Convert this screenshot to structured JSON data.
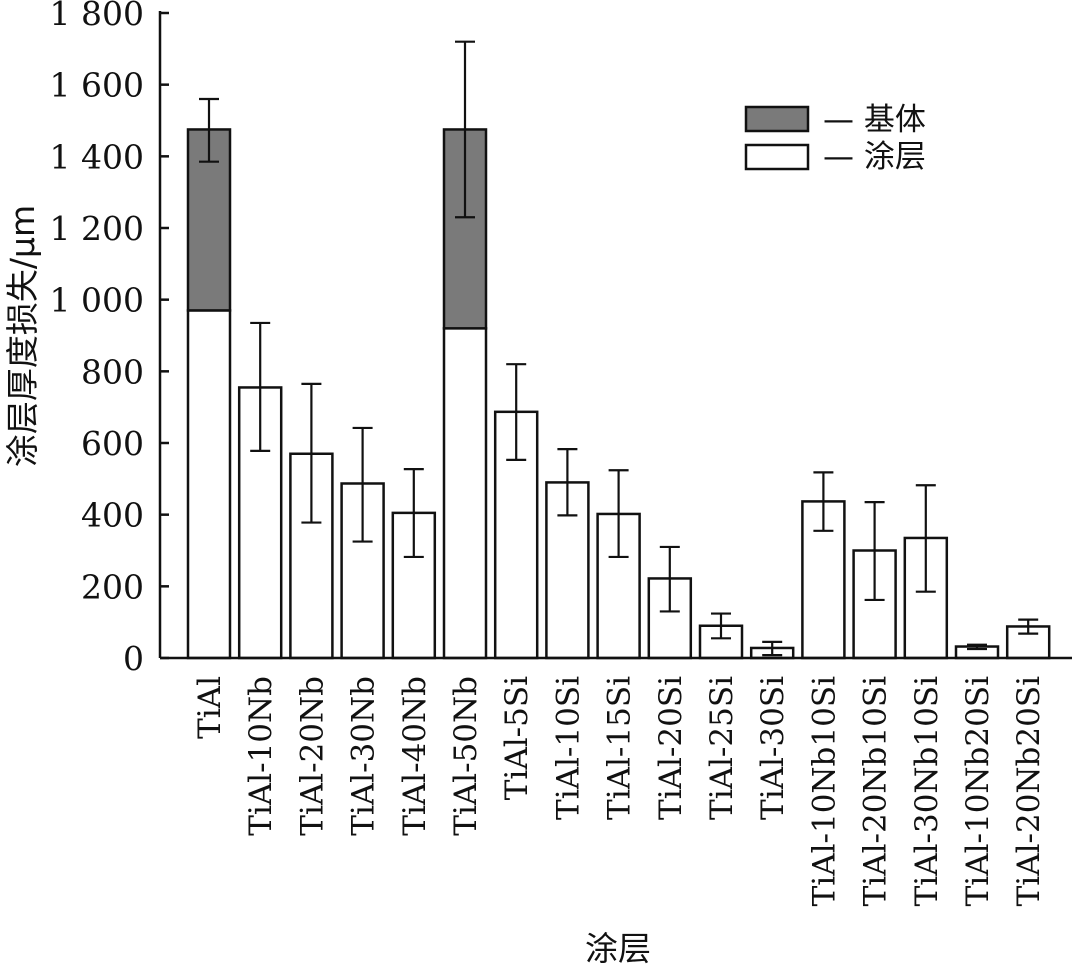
{
  "chart_data": {
    "type": "bar",
    "stacked": true,
    "xlabel": "涂层",
    "ylabel": "涂层厚度损失/μm",
    "ylim": [
      0,
      1800
    ],
    "yticks": [
      0,
      200,
      400,
      600,
      800,
      1000,
      1200,
      1400,
      1600,
      1800
    ],
    "ytick_labels": [
      "0",
      "200",
      "400",
      "600",
      "800",
      "1 000",
      "1 200",
      "1 400",
      "1 600",
      "1 800"
    ],
    "grid": false,
    "legend_position": "top-right",
    "categories": [
      "TiAl",
      "TiAl-10Nb",
      "TiAl-20Nb",
      "TiAl-30Nb",
      "TiAl-40Nb",
      "TiAl-50Nb",
      "TiAl-5Si",
      "TiAl-10Si",
      "TiAl-15Si",
      "TiAl-20Si",
      "TiAl-25Si",
      "TiAl-30Si",
      "TiAl-10Nb10Si",
      "TiAl-20Nb10Si",
      "TiAl-30Nb10Si",
      "TiAl-10Nb20Si",
      "TiAl-20Nb20Si"
    ],
    "series": [
      {
        "name": "涂层",
        "color": "#ffffff",
        "values": [
          970,
          755,
          570,
          487,
          405,
          920,
          687,
          490,
          402,
          222,
          90,
          28,
          437,
          300,
          335,
          32,
          88
        ]
      },
      {
        "name": "基体",
        "color": "#7a7a7a",
        "values": [
          505,
          0,
          0,
          0,
          0,
          555,
          0,
          0,
          0,
          0,
          0,
          0,
          0,
          0,
          0,
          0,
          0
        ]
      }
    ],
    "error_bars": {
      "total_values": [
        1475,
        755,
        570,
        487,
        405,
        1475,
        687,
        490,
        402,
        222,
        90,
        28,
        437,
        300,
        335,
        32,
        88
      ],
      "upper": [
        1560,
        935,
        765,
        642,
        527,
        1720,
        820,
        583,
        524,
        310,
        124,
        45,
        518,
        435,
        482,
        37,
        107
      ],
      "lower": [
        1385,
        578,
        378,
        325,
        282,
        1230,
        553,
        398,
        282,
        130,
        55,
        8,
        355,
        162,
        185,
        25,
        68
      ]
    },
    "legend": [
      {
        "label": "— 基体",
        "color": "#7a7a7a"
      },
      {
        "label": "— 涂层",
        "color": "#ffffff"
      }
    ]
  }
}
